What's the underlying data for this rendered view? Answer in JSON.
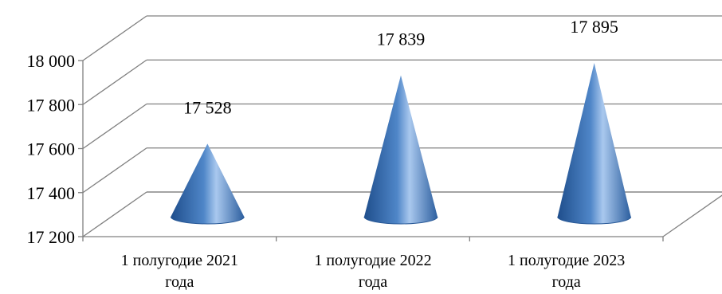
{
  "chart_data": {
    "type": "bar",
    "subtype": "3d-cone",
    "title": "",
    "categories": [
      "1 полугодие 2021 года",
      "1 полугодие 2022 года",
      "1 полугодие 2023 года"
    ],
    "category_lines": [
      [
        "1 полугодие 2021",
        "года"
      ],
      [
        "1 полугодие 2022",
        "года"
      ],
      [
        "1 полугодие 2023",
        "года"
      ]
    ],
    "values": [
      17528,
      17839,
      17895
    ],
    "data_labels": [
      "17 528",
      "17 839",
      "17 895"
    ],
    "ylim": [
      17200,
      18000
    ],
    "yticks": [
      17200,
      17400,
      17600,
      17800,
      18000
    ],
    "ytick_labels": [
      "17 200",
      "17 400",
      "17 600",
      "17 800",
      "18 000"
    ],
    "xlabel": "",
    "ylabel": "",
    "grid": true,
    "legend": "none",
    "colors": {
      "cone_dark": "#1f4e8c",
      "cone_mid": "#4f86c8",
      "cone_light": "#a9c8ee",
      "grid": "#808080"
    }
  }
}
